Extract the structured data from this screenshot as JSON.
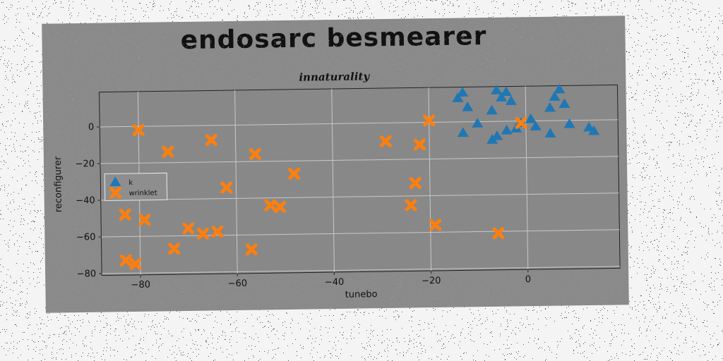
{
  "chart_data": {
    "type": "scatter",
    "title": "endosarc besmearer",
    "subtitle": "innaturality",
    "xlabel": "tunebo",
    "ylabel": "reconfigurer",
    "xlim": [
      -88,
      19
    ],
    "ylim": [
      -81,
      19
    ],
    "xticks": [
      -80,
      -60,
      -40,
      -20,
      0
    ],
    "yticks": [
      0,
      -20,
      -40,
      -60,
      -80
    ],
    "xtick_labels": [
      "−80",
      "−60",
      "−40",
      "−20",
      "0"
    ],
    "ytick_labels": [
      "0",
      "−20",
      "−40",
      "−60",
      "−80"
    ],
    "grid": true,
    "legend_position": "center-left",
    "series": [
      {
        "name": "k",
        "marker": "triangle",
        "color": "#1f77b4",
        "points": [
          [
            -14,
            13
          ],
          [
            -13,
            16
          ],
          [
            -12,
            8
          ],
          [
            -10,
            -1
          ],
          [
            -13,
            -6
          ],
          [
            -7,
            6
          ],
          [
            -6,
            17
          ],
          [
            -5,
            13
          ],
          [
            -4,
            16
          ],
          [
            -3,
            11
          ],
          [
            -7,
            -10
          ],
          [
            -6,
            -8
          ],
          [
            -4,
            -5
          ],
          [
            -2,
            -4
          ],
          [
            -1,
            -1
          ],
          [
            1,
            1
          ],
          [
            2,
            -3
          ],
          [
            5,
            7
          ],
          [
            6,
            13
          ],
          [
            7,
            17
          ],
          [
            8,
            9
          ],
          [
            9,
            -2
          ],
          [
            5,
            -7
          ],
          [
            13,
            -4
          ],
          [
            14,
            -6
          ]
        ]
      },
      {
        "name": "wrinklet",
        "marker": "x",
        "color": "#ff7f0e",
        "points": [
          [
            -80,
            -2
          ],
          [
            -74,
            -14
          ],
          [
            -65,
            -8
          ],
          [
            -56,
            -16
          ],
          [
            -62,
            -34
          ],
          [
            -48,
            -27
          ],
          [
            -53,
            -44
          ],
          [
            -51,
            -45
          ],
          [
            -83,
            -48
          ],
          [
            -79,
            -51
          ],
          [
            -70,
            -56
          ],
          [
            -67,
            -59
          ],
          [
            -64,
            -58
          ],
          [
            -73,
            -67
          ],
          [
            -57,
            -68
          ],
          [
            -83,
            -73
          ],
          [
            -81,
            -75
          ],
          [
            -29,
            -10
          ],
          [
            -22,
            -12
          ],
          [
            -20,
            1
          ],
          [
            -23,
            -33
          ],
          [
            -24,
            -45
          ],
          [
            -19,
            -56
          ],
          [
            -6,
            -61
          ],
          [
            -1,
            -1
          ]
        ]
      }
    ]
  }
}
